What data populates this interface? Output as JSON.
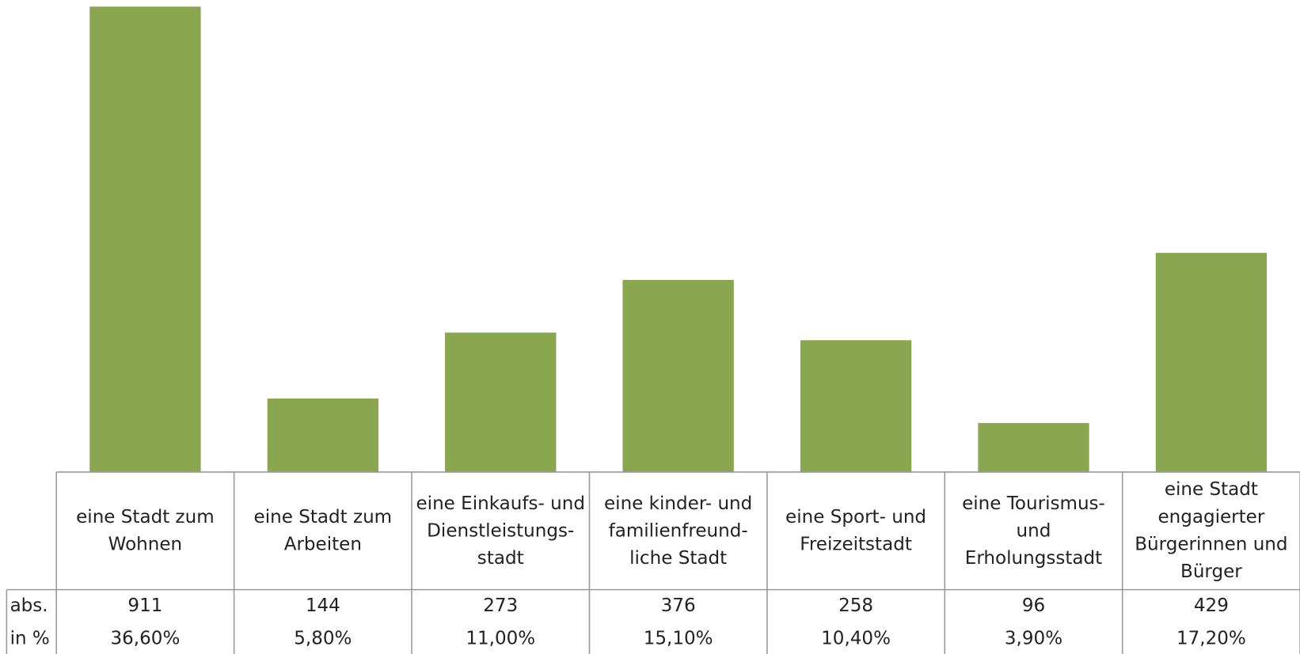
{
  "chart_data": {
    "type": "bar",
    "categories": [
      "eine Stadt zum\nWohnen",
      "eine Stadt zum\nArbeiten",
      "eine Einkaufs- und\nDienstleistungs-\nstadt",
      "eine kinder- und\nfamilienfreund-\nliche Stadt",
      "eine Sport- und\nFreizeitstadt",
      "eine Tourismus-\nund\nErholungsstadt",
      "eine Stadt\nengagierter\nBürgerinnen und\nBürger"
    ],
    "values": [
      911,
      144,
      273,
      376,
      258,
      96,
      429
    ],
    "color": "#8aa64e",
    "row_labels": [
      "abs.",
      "in %"
    ],
    "percents": [
      36.6,
      5.8,
      11.0,
      15.1,
      10.4,
      3.9,
      17.2
    ],
    "percent_labels": [
      "36,60%",
      "5,80%",
      "11,00%",
      "15,10%",
      "10,40%",
      "3,90%",
      "17,20%"
    ]
  }
}
